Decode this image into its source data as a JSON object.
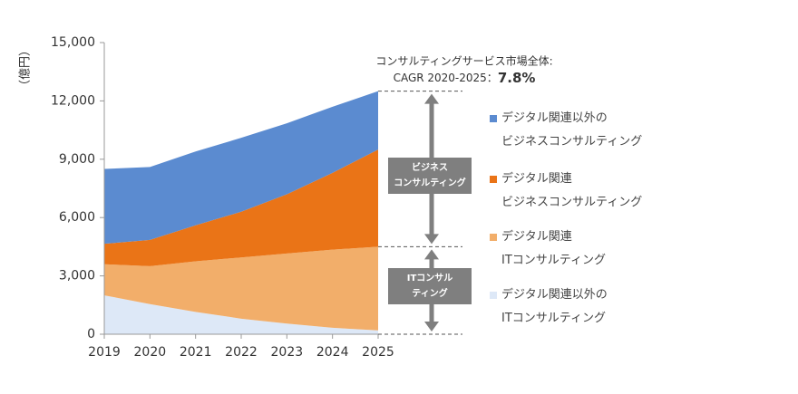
{
  "chart_data": {
    "type": "area",
    "stacked": true,
    "y_label": "（億円）",
    "x": [
      2019,
      2020,
      2021,
      2022,
      2023,
      2024,
      2025
    ],
    "xlim": [
      2019,
      2025
    ],
    "xticks": [
      2019,
      2020,
      2021,
      2022,
      2023,
      2024,
      2025
    ],
    "ylim": [
      0,
      15000
    ],
    "yticks": [
      0,
      {
        "value": 3000,
        "label": "3,000"
      },
      {
        "value": 6000,
        "label": "6,000"
      },
      {
        "value": 9000,
        "label": "9,000"
      },
      {
        "value": 12000,
        "label": "12,000"
      },
      {
        "value": 15000,
        "label": "15,000"
      }
    ],
    "grid": false,
    "series": [
      {
        "name": "デジタル関連以外の\nビジネスコンサルティング",
        "color": "#5b8bd0",
        "values": [
          3850,
          3750,
          3800,
          3800,
          3650,
          3400,
          3000
        ]
      },
      {
        "name": "デジタル関連\nビジネスコンサルティング",
        "color": "#ea7417",
        "values": [
          1050,
          1350,
          1850,
          2350,
          3050,
          3950,
          5000
        ]
      },
      {
        "name": "デジタル関連\nITコンサルティング",
        "color": "#f2ae6a",
        "values": [
          1600,
          1950,
          2600,
          3150,
          3600,
          4020,
          4300
        ]
      },
      {
        "name": "デジタル関連以外の\nITコンサルティング",
        "color": "#dde8f7",
        "values": [
          2000,
          1550,
          1150,
          800,
          550,
          330,
          200
        ]
      }
    ],
    "annotations": {
      "market": "コンサルティングサービス市場全体:",
      "cagr_label": "CAGR 2020-2025：",
      "cagr_value": "7.8%",
      "business_box": "ビジネス\nコンサルティング",
      "it_box": "ITコンサル\nティング"
    }
  }
}
